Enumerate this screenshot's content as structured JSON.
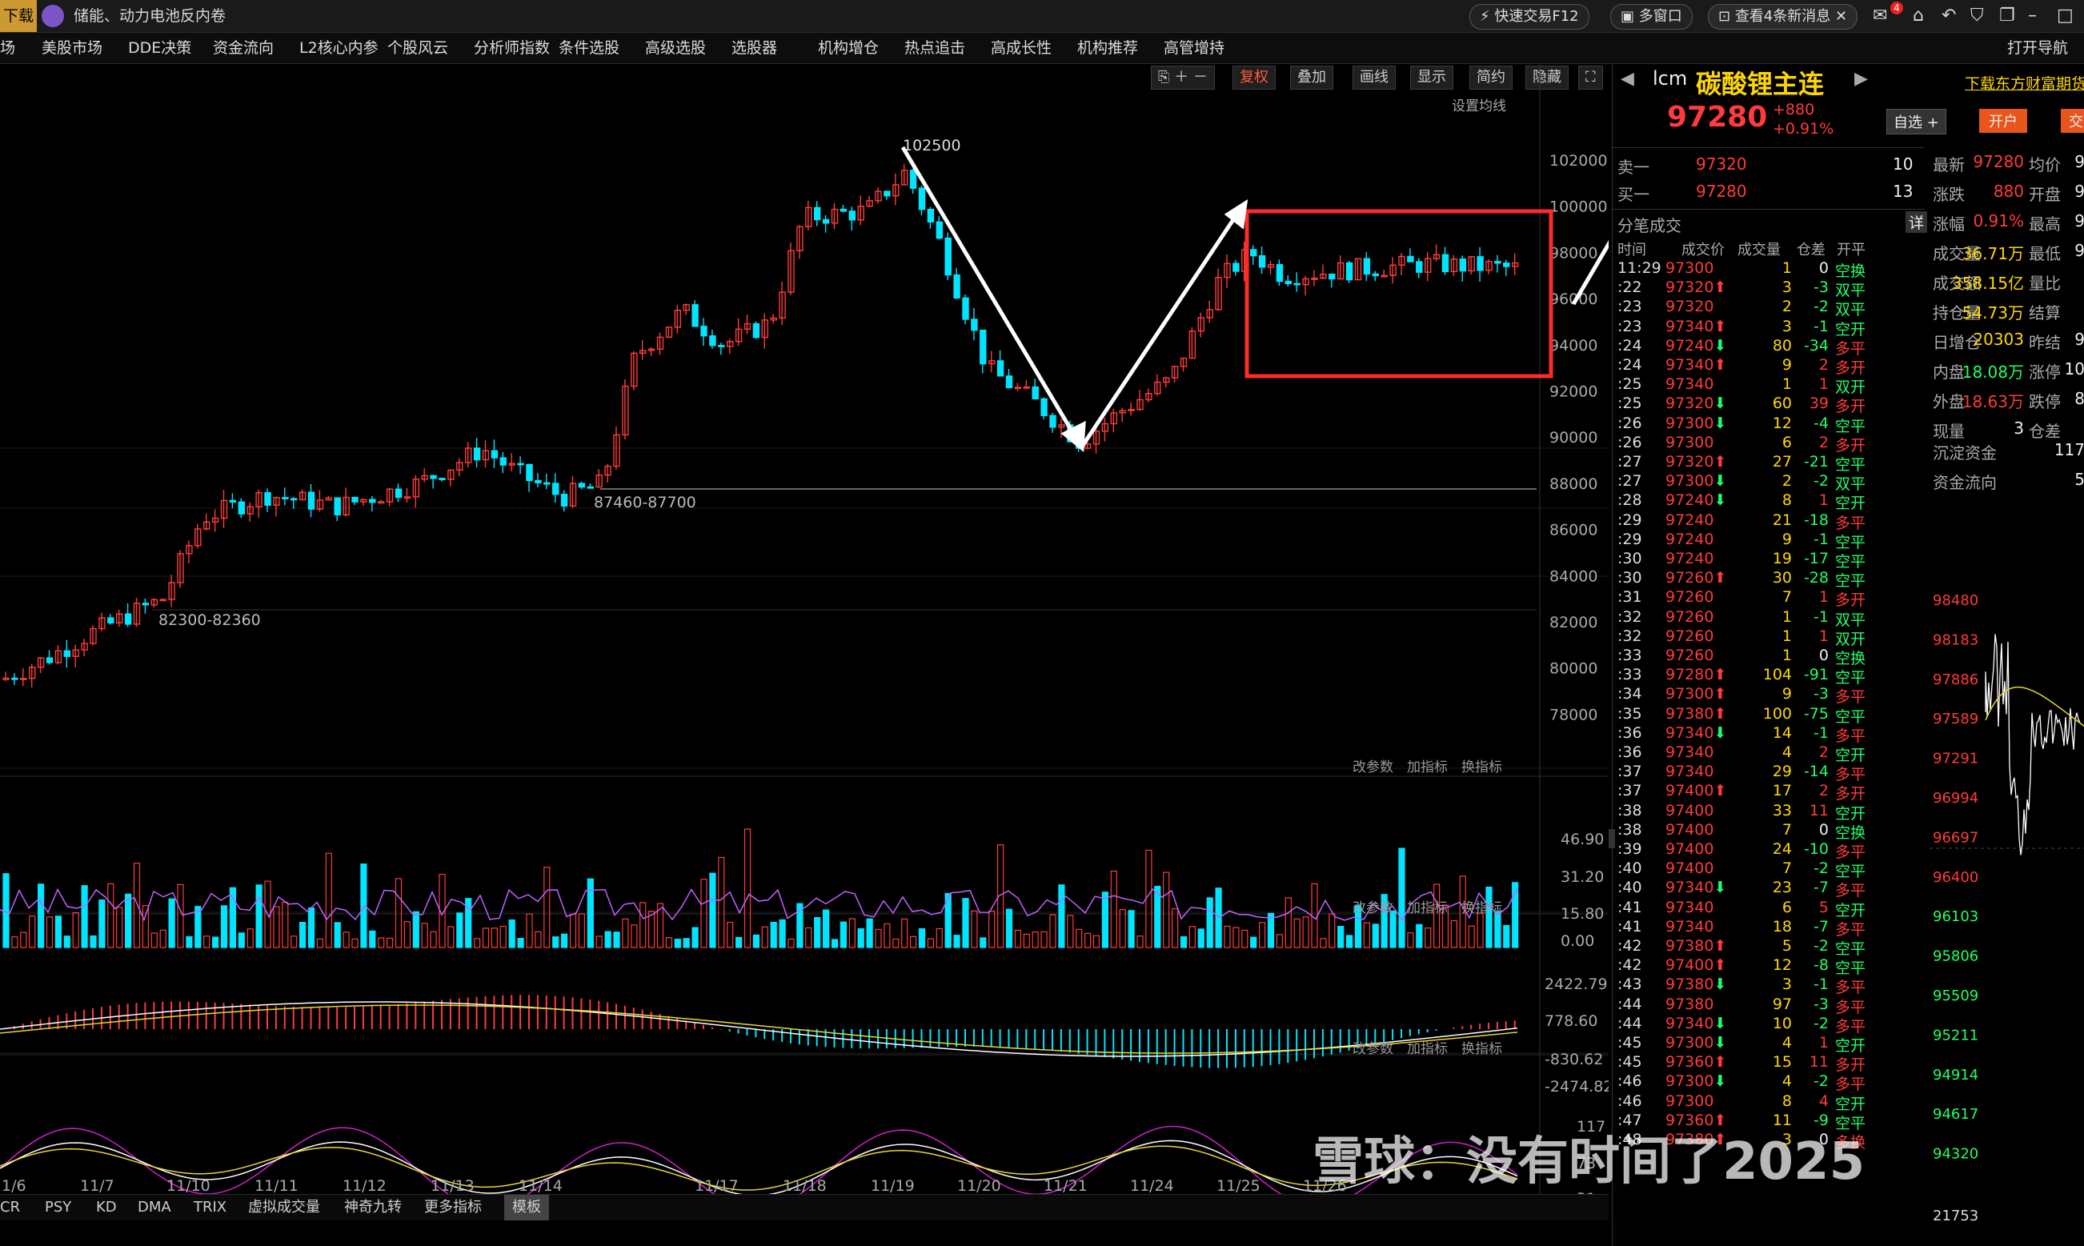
{
  "topbar": {
    "left_label": "下载",
    "news_title": "储能、动力电池反内卷",
    "quick_trade": "快速交易F12",
    "multi_window": "多窗口",
    "messages": "查看4条新消息",
    "badge": "4"
  },
  "menu": [
    "场",
    "美股市场",
    "DDE决策",
    "资金流向",
    "L2核心内参",
    "个股风云",
    "分析师指数",
    "条件选股",
    "高级选股",
    "选股器",
    "机构增仓",
    "热点追击",
    "高成长性",
    "机构推荐",
    "高管增持"
  ],
  "menu_right": "打开导航",
  "toolbar": {
    "restore": "复权",
    "overlay": "叠加",
    "draw": "画线",
    "display": "显示",
    "simple": "简约",
    "hide": "隐藏",
    "ma_setting": "设置均线"
  },
  "panel_controls": [
    "改参数",
    "加指标",
    "换指标"
  ],
  "annotations": {
    "high": "102500",
    "mid_range": "87460-87700",
    "low_range": "82300-82360"
  },
  "price_axis": [
    "102000",
    "100000",
    "98000",
    "96000",
    "94000",
    "92000",
    "90000",
    "88000",
    "86000",
    "84000",
    "82000",
    "80000",
    "78000"
  ],
  "vol_axis": [
    "46.90",
    "31.20",
    "15.80",
    "0.00"
  ],
  "macd_axis": [
    "2422.79",
    "778.60",
    "-830.62",
    "-2474.82"
  ],
  "kdj_axis": [
    "117",
    "73",
    "31"
  ],
  "date_axis": [
    "1/6",
    "11/7",
    "11/10",
    "11/11",
    "11/12",
    "11/13",
    "11/14",
    "11/17",
    "11/18",
    "11/19",
    "11/20",
    "11/21",
    "11/24",
    "11/25",
    "11/26"
  ],
  "bottom_tabs": [
    "CR",
    "PSY",
    "KD",
    "DMA",
    "TRIX",
    "虚拟成交量",
    "神奇九转",
    "更多指标",
    "模板"
  ],
  "quote": {
    "code": "lcm",
    "name": "碳酸锂主连",
    "price": "97280",
    "change": "+880",
    "pct": "+0.91%",
    "download": "下载东方财富期货",
    "watch": "自选 +",
    "open": "开户",
    "trade": "交"
  },
  "orderbook": [
    {
      "label": "卖一",
      "price": "97320",
      "vol": "10"
    },
    {
      "label": "买一",
      "price": "97280",
      "vol": "13"
    }
  ],
  "stats": [
    {
      "k": "最新",
      "v": "97280",
      "k2": "均价",
      "v2": "9"
    },
    {
      "k": "涨跌",
      "v": "880",
      "k2": "开盘",
      "v2": "9"
    },
    {
      "k": "涨幅",
      "v": "0.91%",
      "k2": "最高",
      "v2": "9"
    },
    {
      "k": "成交量",
      "v": "36.71万",
      "k2": "最低",
      "v2": "9"
    },
    {
      "k": "成交额",
      "v": "358.15亿",
      "k2": "量比",
      "v2": ""
    },
    {
      "k": "持仓量",
      "v": "54.73万",
      "k2": "结算",
      "v2": ""
    },
    {
      "k": "日增仓",
      "v": "20303",
      "k2": "昨结",
      "v2": "9"
    },
    {
      "k": "内盘",
      "v": "18.08万",
      "k2": "涨停",
      "v2": "10"
    },
    {
      "k": "外盘",
      "v": "18.63万",
      "k2": "跌停",
      "v2": "8"
    },
    {
      "k": "现量",
      "v": "3",
      "k2": "仓差",
      "v2": ""
    }
  ],
  "funds": [
    {
      "k": "沉淀资金",
      "v": "117"
    },
    {
      "k": "资金流向",
      "v": "5"
    }
  ],
  "trades_header": {
    "title": "分笔成交",
    "detail": "详",
    "cols": [
      "时间",
      "成交价",
      "成交量",
      "仓差",
      "开平"
    ]
  },
  "trades": [
    [
      "11:29",
      "97300",
      "",
      "1",
      "0",
      "空换"
    ],
    [
      ":22",
      "97320",
      "up",
      "3",
      "-3",
      "双平"
    ],
    [
      ":23",
      "97320",
      "",
      "2",
      "-2",
      "双平"
    ],
    [
      ":23",
      "97340",
      "up",
      "3",
      "-1",
      "空开"
    ],
    [
      ":24",
      "97240",
      "down",
      "80",
      "-34",
      "多平"
    ],
    [
      ":24",
      "97340",
      "up",
      "9",
      "2",
      "多开"
    ],
    [
      ":25",
      "97340",
      "",
      "1",
      "1",
      "双开"
    ],
    [
      ":25",
      "97320",
      "down",
      "60",
      "39",
      "多开"
    ],
    [
      ":26",
      "97300",
      "down",
      "12",
      "-4",
      "空平"
    ],
    [
      ":26",
      "97300",
      "",
      "6",
      "2",
      "多开"
    ],
    [
      ":27",
      "97320",
      "up",
      "27",
      "-21",
      "空平"
    ],
    [
      ":27",
      "97300",
      "down",
      "2",
      "-2",
      "双平"
    ],
    [
      ":28",
      "97240",
      "down",
      "8",
      "1",
      "空开"
    ],
    [
      ":29",
      "97240",
      "",
      "21",
      "-18",
      "多平"
    ],
    [
      ":29",
      "97240",
      "",
      "9",
      "-1",
      "空平"
    ],
    [
      ":30",
      "97240",
      "",
      "19",
      "-17",
      "空平"
    ],
    [
      ":30",
      "97260",
      "up",
      "30",
      "-28",
      "空平"
    ],
    [
      ":31",
      "97260",
      "",
      "7",
      "1",
      "多开"
    ],
    [
      ":32",
      "97260",
      "",
      "1",
      "-1",
      "双平"
    ],
    [
      ":32",
      "97260",
      "",
      "1",
      "1",
      "双开"
    ],
    [
      ":33",
      "97260",
      "",
      "1",
      "0",
      "空换"
    ],
    [
      ":33",
      "97280",
      "up",
      "104",
      "-91",
      "空平"
    ],
    [
      ":34",
      "97300",
      "up",
      "9",
      "-3",
      "多平"
    ],
    [
      ":35",
      "97380",
      "up",
      "100",
      "-75",
      "空平"
    ],
    [
      ":36",
      "97340",
      "down",
      "14",
      "-1",
      "多平"
    ],
    [
      ":36",
      "97340",
      "",
      "4",
      "2",
      "空开"
    ],
    [
      ":37",
      "97340",
      "",
      "29",
      "-14",
      "多平"
    ],
    [
      ":37",
      "97400",
      "up",
      "17",
      "2",
      "多开"
    ],
    [
      ":38",
      "97400",
      "",
      "33",
      "11",
      "空开"
    ],
    [
      ":38",
      "97400",
      "",
      "7",
      "0",
      "空换"
    ],
    [
      ":39",
      "97400",
      "",
      "24",
      "-10",
      "多平"
    ],
    [
      ":40",
      "97400",
      "",
      "7",
      "-2",
      "空平"
    ],
    [
      ":40",
      "97340",
      "down",
      "23",
      "-7",
      "多平"
    ],
    [
      ":41",
      "97340",
      "",
      "6",
      "5",
      "空开"
    ],
    [
      ":41",
      "97340",
      "",
      "18",
      "-7",
      "多平"
    ],
    [
      ":42",
      "97380",
      "up",
      "5",
      "-2",
      "空平"
    ],
    [
      ":42",
      "97400",
      "up",
      "12",
      "-8",
      "空平"
    ],
    [
      ":43",
      "97380",
      "down",
      "3",
      "-1",
      "多平"
    ],
    [
      ":44",
      "97380",
      "",
      "97",
      "-3",
      "多平"
    ],
    [
      ":44",
      "97340",
      "down",
      "10",
      "-2",
      "多平"
    ],
    [
      ":45",
      "97300",
      "down",
      "4",
      "1",
      "空开"
    ],
    [
      ":45",
      "97360",
      "up",
      "15",
      "11",
      "多开"
    ],
    [
      ":46",
      "97300",
      "down",
      "4",
      "-2",
      "多平"
    ],
    [
      ":46",
      "97300",
      "",
      "8",
      "4",
      "空开"
    ],
    [
      ":47",
      "97360",
      "up",
      "11",
      "-9",
      "空平"
    ],
    [
      ":48",
      "97380",
      "up",
      "3",
      "0",
      "多换"
    ]
  ],
  "mini_axis": [
    "98480",
    "98183",
    "97886",
    "97589",
    "97291",
    "96994",
    "96697",
    "96400",
    "96103",
    "95806",
    "95509",
    "95211",
    "94914",
    "94617",
    "94320",
    "21753"
  ],
  "watermark": "雪球：没有时间了2025"
}
